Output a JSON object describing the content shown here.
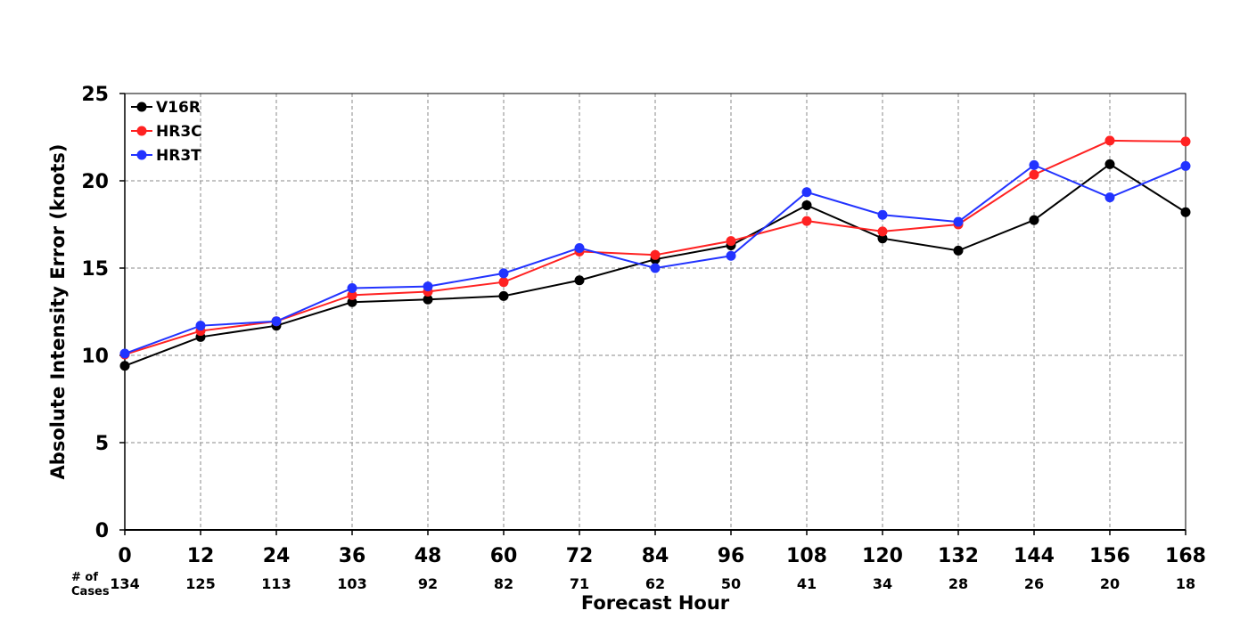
{
  "chart_data": {
    "type": "line",
    "title": "",
    "xlabel": "Forecast Hour",
    "ylabel": "Absolute Intensity Error (knots)",
    "xlim": [
      0,
      168
    ],
    "ylim": [
      0,
      25
    ],
    "x": [
      0,
      12,
      24,
      36,
      48,
      60,
      72,
      84,
      96,
      108,
      120,
      132,
      144,
      156,
      168
    ],
    "x_tick_labels": [
      "0",
      "12",
      "24",
      "36",
      "48",
      "60",
      "72",
      "84",
      "96",
      "108",
      "120",
      "132",
      "144",
      "156",
      "168"
    ],
    "y_ticks": [
      0,
      5,
      10,
      15,
      20,
      25
    ],
    "y_tick_labels": [
      "0",
      "5",
      "10",
      "15",
      "20",
      "25"
    ],
    "grid": true,
    "legend_position": "top-left",
    "cases_label": [
      "# of",
      "Cases"
    ],
    "cases": [
      "134",
      "125",
      "113",
      "103",
      "92",
      "82",
      "71",
      "62",
      "50",
      "41",
      "34",
      "28",
      "26",
      "20",
      "18"
    ],
    "series": [
      {
        "name": "V16R",
        "color": "#000000",
        "values": [
          9.4,
          11.05,
          11.7,
          13.05,
          13.2,
          13.4,
          14.3,
          15.5,
          16.3,
          18.6,
          16.7,
          16.0,
          17.75,
          20.95,
          18.2
        ]
      },
      {
        "name": "HR3C",
        "color": "#ff2222",
        "values": [
          10.05,
          11.4,
          11.95,
          13.45,
          13.65,
          14.2,
          15.95,
          15.75,
          16.55,
          17.7,
          17.1,
          17.5,
          20.35,
          22.3,
          22.25
        ]
      },
      {
        "name": "HR3T",
        "color": "#2233ff",
        "values": [
          10.1,
          11.7,
          11.95,
          13.85,
          13.95,
          14.7,
          16.15,
          15.0,
          15.7,
          19.35,
          18.05,
          17.65,
          20.9,
          19.05,
          20.85
        ]
      }
    ]
  }
}
